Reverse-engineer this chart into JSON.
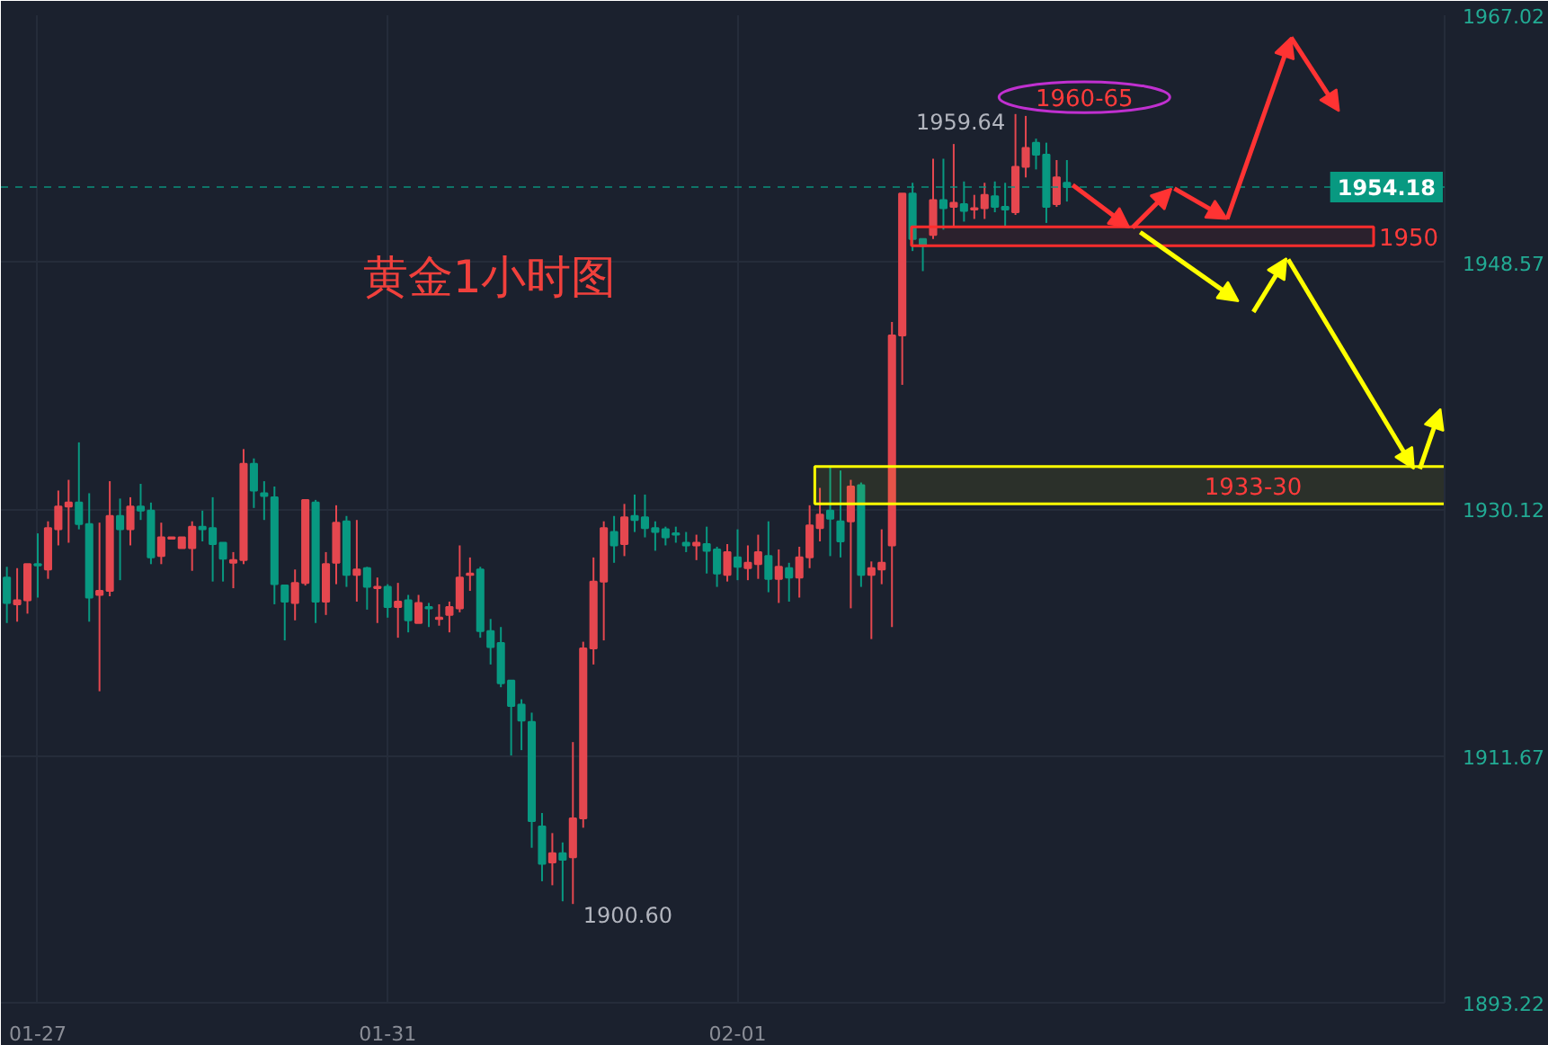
{
  "chart_data": {
    "type": "candlestick",
    "title": "黄金1小时图",
    "categories": [
      null,
      null,
      null,
      "01-27",
      null,
      null,
      null,
      null,
      null,
      null,
      null,
      null,
      null,
      null,
      null,
      null,
      null,
      null,
      null,
      null,
      null,
      null,
      null,
      null,
      null,
      null,
      null,
      null,
      null,
      null,
      null,
      null,
      null,
      null,
      null,
      null,
      null,
      "01-31",
      null,
      null,
      null,
      null,
      null,
      null,
      null,
      null,
      null,
      null,
      null,
      null,
      null,
      null,
      null,
      null,
      null,
      null,
      null,
      null,
      null,
      null,
      null,
      null,
      null,
      null,
      null,
      null,
      null,
      null,
      null,
      null,
      null,
      "02-01",
      null,
      null,
      null,
      null,
      null,
      null,
      null,
      null,
      null,
      null,
      null,
      null,
      null,
      null,
      null,
      null,
      null,
      null,
      null,
      null,
      null,
      null,
      null,
      null,
      null,
      null,
      null,
      null,
      null,
      null,
      null,
      null,
      null,
      null,
      null,
      null,
      null,
      null,
      null,
      null,
      null,
      null,
      null,
      null,
      null,
      null,
      null,
      null,
      null,
      null,
      null,
      null,
      null,
      null,
      null,
      null,
      null,
      null,
      null,
      null,
      null,
      null,
      null,
      null,
      null,
      null,
      null,
      null
    ],
    "ohlc": [
      [
        1925.0,
        1925.8,
        1921.6,
        1923.1
      ],
      [
        1923.0,
        1925.7,
        1921.7,
        1923.3
      ],
      [
        1923.3,
        1926.0,
        1922.3,
        1926.0
      ],
      [
        1926.0,
        1928.3,
        1923.5,
        1925.9
      ],
      [
        1925.6,
        1929.2,
        1924.9,
        1928.7
      ],
      [
        1928.6,
        1931.5,
        1927.4,
        1930.3
      ],
      [
        1930.3,
        1932.3,
        1927.6,
        1930.6
      ],
      [
        1930.6,
        1935.1,
        1928.6,
        1929.0
      ],
      [
        1929.0,
        1931.3,
        1921.7,
        1923.5
      ],
      [
        1923.7,
        1929.1,
        1916.5,
        1924.0
      ],
      [
        1924.0,
        1932.2,
        1923.6,
        1929.6
      ],
      [
        1929.6,
        1930.9,
        1924.8,
        1928.6
      ],
      [
        1928.6,
        1931.0,
        1927.4,
        1930.3
      ],
      [
        1930.3,
        1932.0,
        1929.3,
        1930.0
      ],
      [
        1930.0,
        1930.6,
        1926.0,
        1926.5
      ],
      [
        1926.6,
        1929.1,
        1926.0,
        1928.0
      ],
      [
        1927.9,
        1928.0,
        1927.9,
        1928.0
      ],
      [
        1927.2,
        1928.0,
        1927.2,
        1928.0
      ],
      [
        1927.2,
        1929.2,
        1925.5,
        1928.8
      ],
      [
        1928.8,
        1930.0,
        1927.7,
        1928.6
      ],
      [
        1928.7,
        1931.0,
        1924.7,
        1927.5
      ],
      [
        1927.6,
        1927.6,
        1924.7,
        1926.4
      ],
      [
        1926.1,
        1926.9,
        1924.2,
        1926.3
      ],
      [
        1926.3,
        1934.6,
        1926.0,
        1933.5
      ],
      [
        1933.5,
        1933.9,
        1930.2,
        1931.5
      ],
      [
        1931.3,
        1932.2,
        1929.3,
        1931.1
      ],
      [
        1931.0,
        1931.8,
        1923.0,
        1924.5
      ],
      [
        1924.4,
        1924.4,
        1920.3,
        1923.2
      ],
      [
        1923.1,
        1925.6,
        1921.8,
        1924.6
      ],
      [
        1924.6,
        1930.8,
        1924.4,
        1930.8
      ],
      [
        1930.6,
        1930.8,
        1921.6,
        1923.2
      ],
      [
        1923.2,
        1926.9,
        1922.2,
        1926.0
      ],
      [
        1926.1,
        1930.4,
        1924.5,
        1929.1
      ],
      [
        1929.2,
        1929.6,
        1924.3,
        1925.2
      ],
      [
        1925.2,
        1929.3,
        1923.2,
        1925.6
      ],
      [
        1925.7,
        1925.8,
        1922.6,
        1924.3
      ],
      [
        1924.2,
        1925.0,
        1921.6,
        1924.3
      ],
      [
        1924.3,
        1924.5,
        1922.0,
        1922.8
      ],
      [
        1922.8,
        1924.6,
        1920.5,
        1923.2
      ],
      [
        1923.3,
        1923.7,
        1920.9,
        1921.8
      ],
      [
        1921.6,
        1923.7,
        1921.6,
        1923.1
      ],
      [
        1922.8,
        1923.1,
        1921.3,
        1922.7
      ],
      [
        1921.9,
        1923.0,
        1921.4,
        1922.0
      ],
      [
        1922.2,
        1923.2,
        1920.9,
        1922.8
      ],
      [
        1922.7,
        1927.4,
        1922.4,
        1925.0
      ],
      [
        1925.2,
        1926.5,
        1924.0,
        1925.3
      ],
      [
        1925.6,
        1925.8,
        1920.5,
        1921.0
      ],
      [
        1921.0,
        1921.9,
        1918.5,
        1919.8
      ],
      [
        1920.1,
        1921.3,
        1916.8,
        1917.1
      ],
      [
        1917.3,
        1917.3,
        1911.7,
        1915.4
      ],
      [
        1915.5,
        1915.9,
        1912.1,
        1914.3
      ],
      [
        1914.2,
        1914.9,
        1904.8,
        1906.8
      ],
      [
        1906.4,
        1907.4,
        1902.3,
        1903.6
      ],
      [
        1903.7,
        1905.9,
        1902.0,
        1904.4
      ],
      [
        1904.4,
        1905.2,
        1900.8,
        1903.9
      ],
      [
        1904.1,
        1912.7,
        1900.6,
        1907.0
      ],
      [
        1907.0,
        1920.2,
        1906.3,
        1919.7
      ],
      [
        1919.7,
        1926.5,
        1918.5,
        1924.7
      ],
      [
        1924.7,
        1929.2,
        1920.3,
        1928.7
      ],
      [
        1928.4,
        1929.6,
        1926.1,
        1927.4
      ],
      [
        1927.5,
        1930.5,
        1926.6,
        1929.5
      ],
      [
        1929.6,
        1931.2,
        1928.4,
        1929.3
      ],
      [
        1929.5,
        1931.2,
        1928.0,
        1928.7
      ],
      [
        1928.7,
        1929.2,
        1927.0,
        1928.4
      ],
      [
        1928.6,
        1928.8,
        1927.4,
        1928.0
      ],
      [
        1928.3,
        1928.8,
        1927.6,
        1928.2
      ],
      [
        1927.6,
        1928.4,
        1926.9,
        1927.4
      ],
      [
        1927.4,
        1928.2,
        1926.3,
        1927.6
      ],
      [
        1927.5,
        1928.8,
        1925.3,
        1927.0
      ],
      [
        1927.1,
        1927.3,
        1924.3,
        1925.3
      ],
      [
        1925.2,
        1927.5,
        1924.7,
        1926.9
      ],
      [
        1926.5,
        1928.6,
        1924.8,
        1925.8
      ],
      [
        1925.7,
        1927.4,
        1924.8,
        1926.1
      ],
      [
        1926.0,
        1928.2,
        1924.9,
        1926.9
      ],
      [
        1926.6,
        1929.2,
        1923.9,
        1924.9
      ],
      [
        1924.9,
        1927.1,
        1923.1,
        1925.8
      ],
      [
        1925.7,
        1926.1,
        1923.2,
        1925.0
      ],
      [
        1925.0,
        1927.3,
        1923.5,
        1926.5
      ],
      [
        1926.5,
        1930.4,
        1925.7,
        1928.9
      ],
      [
        1928.7,
        1931.7,
        1927.7,
        1929.7
      ],
      [
        1930.0,
        1933.3,
        1926.6,
        1929.4
      ],
      [
        1929.2,
        1933.0,
        1926.5,
        1927.7
      ],
      [
        1929.2,
        1932.3,
        1922.7,
        1931.8
      ],
      [
        1931.9,
        1932.1,
        1924.3,
        1925.2
      ],
      [
        1925.2,
        1926.2,
        1920.4,
        1925.7
      ],
      [
        1925.6,
        1928.6,
        1924.5,
        1926.1
      ],
      [
        1927.4,
        1944.1,
        1921.3,
        1943.1
      ],
      [
        1943.1,
        1953.7,
        1939.4,
        1953.7
      ],
      [
        1953.7,
        1954.5,
        1949.4,
        1950.3
      ],
      [
        1950.3,
        1950.3,
        1947.9,
        1949.8
      ],
      [
        1950.6,
        1956.3,
        1950.3,
        1953.2
      ],
      [
        1953.2,
        1956.3,
        1951.0,
        1952.6
      ],
      [
        1952.7,
        1957.4,
        1951.2,
        1953.0
      ],
      [
        1952.9,
        1954.6,
        1951.6,
        1952.4
      ],
      [
        1952.5,
        1953.6,
        1951.8,
        1952.6
      ],
      [
        1952.6,
        1954.5,
        1951.8,
        1953.6
      ],
      [
        1953.5,
        1954.6,
        1952.3,
        1952.7
      ],
      [
        1952.7,
        1954.5,
        1951.2,
        1952.5
      ],
      [
        1952.3,
        1959.64,
        1952.1,
        1955.7
      ],
      [
        1955.7,
        1959.5,
        1954.9,
        1957.1
      ],
      [
        1957.5,
        1957.8,
        1955.5,
        1956.6
      ],
      [
        1956.6,
        1957.5,
        1951.5,
        1952.7
      ],
      [
        1952.9,
        1956.2,
        1952.7,
        1954.9
      ],
      [
        1954.5,
        1956.2,
        1953.1,
        1954.18
      ],
      null,
      null,
      null,
      null,
      null,
      null,
      null,
      null,
      null,
      null,
      null,
      null,
      null,
      null,
      null,
      null,
      null,
      null,
      null,
      null,
      null,
      null,
      null,
      null,
      null,
      null,
      null,
      null,
      null,
      null,
      null,
      null,
      null,
      null,
      null,
      null
    ],
    "colors": [
      "#089981",
      "#e5474f",
      "#e5474f",
      "#089981",
      "#e5474f",
      "#e5474f",
      "#e5474f",
      "#089981",
      "#089981",
      "#e5474f",
      "#e5474f",
      "#089981",
      "#e5474f",
      "#089981",
      "#089981",
      "#e5474f",
      "#e5474f",
      "#e5474f",
      "#e5474f",
      "#089981",
      "#089981",
      "#089981",
      "#e5474f",
      "#e5474f",
      "#089981",
      "#089981",
      "#089981",
      "#089981",
      "#e5474f",
      "#e5474f",
      "#089981",
      "#e5474f",
      "#e5474f",
      "#089981",
      "#e5474f",
      "#089981",
      "#e5474f",
      "#089981",
      "#e5474f",
      "#089981",
      "#e5474f",
      "#089981",
      "#e5474f",
      "#e5474f",
      "#e5474f",
      "#e5474f",
      "#089981",
      "#089981",
      "#089981",
      "#089981",
      "#089981",
      "#089981",
      "#089981",
      "#e5474f",
      "#089981",
      "#e5474f",
      "#e5474f",
      "#e5474f",
      "#e5474f",
      "#089981",
      "#e5474f",
      "#089981",
      "#089981",
      "#089981",
      "#089981",
      "#089981",
      "#089981",
      "#e5474f",
      "#089981",
      "#089981",
      "#e5474f",
      "#089981",
      "#e5474f",
      "#e5474f",
      "#089981",
      "#e5474f",
      "#089981",
      "#e5474f",
      "#e5474f",
      "#e5474f",
      "#089981",
      "#089981",
      "#e5474f",
      "#089981",
      "#e5474f",
      "#e5474f",
      "#e5474f",
      "#e5474f",
      "#089981",
      "#089981",
      "#e5474f",
      "#089981",
      "#e5474f",
      "#089981",
      "#e5474f",
      "#e5474f",
      "#089981",
      "#089981",
      "#e5474f",
      "#e5474f",
      "#089981",
      "#089981",
      "#e5474f",
      "#089981",
      null,
      null,
      null,
      null,
      null,
      null,
      null,
      null,
      null,
      null,
      null,
      null,
      null,
      null,
      null,
      null,
      null,
      null,
      null,
      null,
      null,
      null,
      null,
      null,
      null,
      null,
      null,
      null,
      null,
      null,
      null,
      null,
      null,
      null,
      null,
      null
    ],
    "ylim": [
      1893.22,
      1967.02
    ],
    "yticks": [
      1967.02,
      1948.57,
      1930.12,
      1911.67,
      1893.22
    ],
    "grid": true,
    "ref_lines": [
      {
        "axis": "y",
        "value": 1954.18,
        "label": "1954.18",
        "color": "#089981",
        "line_style": "dashed"
      }
    ],
    "bands": [
      {
        "axis": "y",
        "from": 1949.8,
        "to": 1951.2,
        "label": "1950",
        "color": "#ff2d2d"
      },
      {
        "axis": "y",
        "from": 1930.5,
        "to": 1933.3,
        "label": "1933-30",
        "color": "#ffff00"
      }
    ],
    "annotations": [
      "1959.64",
      "1900.60",
      "1960-65"
    ]
  }
}
